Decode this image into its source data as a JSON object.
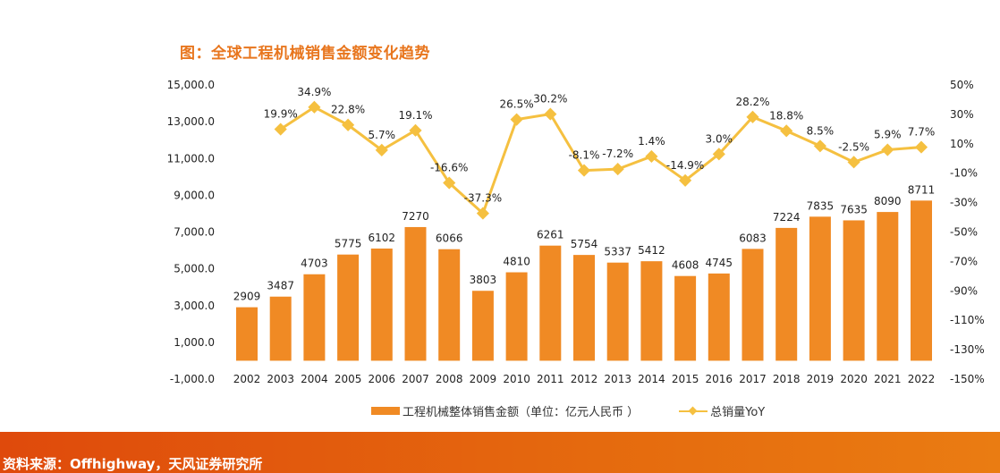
{
  "chart_data": {
    "type": "bar+line",
    "title": "图：全球工程机械销售金额变化趋势",
    "categories": [
      "2002",
      "2003",
      "2004",
      "2005",
      "2006",
      "2007",
      "2008",
      "2009",
      "2010",
      "2011",
      "2012",
      "2013",
      "2014",
      "2015",
      "2016",
      "2017",
      "2018",
      "2019",
      "2020",
      "2021",
      "2022"
    ],
    "series": [
      {
        "name": "工程机械整体销售金额（单位：亿元人民币 ）",
        "type": "bar",
        "axis": "left",
        "color": "#f08a24",
        "values": [
          2909,
          3487,
          4703,
          5775,
          6102,
          7270,
          6066,
          3803,
          4810,
          6261,
          5754,
          5337,
          5412,
          4608,
          4745,
          6083,
          7224,
          7835,
          7635,
          8090,
          8711
        ],
        "labels": [
          "2909",
          "3487",
          "4703",
          "5775",
          "6102",
          "7270",
          "6066",
          "3803",
          "4810",
          "6261",
          "5754",
          "5337",
          "5412",
          "4608",
          "4745",
          "6083",
          "7224",
          "7835",
          "7635",
          "8090",
          "8711"
        ]
      },
      {
        "name": "总销量YoY",
        "type": "line",
        "axis": "right",
        "color": "#f5c040",
        "values": [
          null,
          19.9,
          34.9,
          22.8,
          5.7,
          19.1,
          -16.6,
          -37.3,
          26.5,
          30.2,
          -8.1,
          -7.2,
          1.4,
          -14.9,
          3.0,
          28.2,
          18.8,
          8.5,
          -2.5,
          5.9,
          7.7
        ],
        "labels": [
          "",
          "19.9%",
          "34.9%",
          "22.8%",
          "5.7%",
          "19.1%",
          "-16.6%",
          "-37.3%",
          "26.5%",
          "30.2%",
          "-8.1%",
          "-7.2%",
          "1.4%",
          "-14.9%",
          "3.0%",
          "28.2%",
          "18.8%",
          "8.5%",
          "-2.5%",
          "5.9%",
          "7.7%"
        ]
      }
    ],
    "left_axis": {
      "ylim": [
        -1000,
        15000
      ],
      "ticks": [
        "15,000.0",
        "13,000.0",
        "11,000.0",
        "9,000.0",
        "7,000.0",
        "5,000.0",
        "3,000.0",
        "1,000.0",
        "-1,000.0"
      ],
      "tick_values": [
        15000,
        13000,
        11000,
        9000,
        7000,
        5000,
        3000,
        1000,
        -1000
      ]
    },
    "right_axis": {
      "ylim": [
        -150,
        50
      ],
      "ticks": [
        "50%",
        "30%",
        "10%",
        "-10%",
        "-30%",
        "-50%",
        "-70%",
        "-90%",
        "-110%",
        "-130%",
        "-150%"
      ],
      "tick_values": [
        50,
        30,
        10,
        -10,
        -30,
        -50,
        -70,
        -90,
        -110,
        -130,
        -150
      ]
    },
    "grid": false,
    "legend": "bottom"
  },
  "footer": {
    "source": "资料来源：Offhighway，天风证券研究所"
  }
}
